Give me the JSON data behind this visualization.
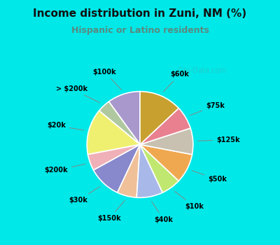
{
  "title": "Income distribution in Zuni, NM (%)",
  "subtitle": "Hispanic or Latino residents",
  "bg_top_color": "#00e8e8",
  "chart_bg_color": "#e0f5ee",
  "slices": [
    {
      "label": "$100k",
      "value": 10,
      "color": "#a898cc"
    },
    {
      "label": "> $200k",
      "value": 4,
      "color": "#b0c8a0"
    },
    {
      "label": "$20k",
      "value": 14,
      "color": "#f0f070"
    },
    {
      "label": "$200k",
      "value": 5,
      "color": "#f0b0b8"
    },
    {
      "label": "$30k",
      "value": 10,
      "color": "#8888cc"
    },
    {
      "label": "$150k",
      "value": 6,
      "color": "#f0c098"
    },
    {
      "label": "$40k",
      "value": 8,
      "color": "#a8b8e8"
    },
    {
      "label": "$10k",
      "value": 6,
      "color": "#c0e870"
    },
    {
      "label": "$50k",
      "value": 9,
      "color": "#f0a850"
    },
    {
      "label": "$125k",
      "value": 8,
      "color": "#c8c0b0"
    },
    {
      "label": "$75k",
      "value": 7,
      "color": "#e88090"
    },
    {
      "label": "$60k",
      "value": 13,
      "color": "#c8a030"
    }
  ],
  "start_angle": 90,
  "watermark": "City-Data.com",
  "title_fontsize": 11,
  "subtitle_fontsize": 9,
  "label_fontsize": 7
}
